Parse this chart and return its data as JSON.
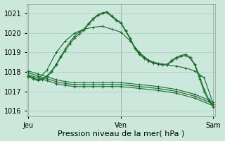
{
  "bg_color": "#cce8dc",
  "grid_color": "#aaccbb",
  "line_color": "#1a6e2e",
  "title": "Pression niveau de la mer( hPa )",
  "ylim": [
    1015.7,
    1021.5
  ],
  "yticks": [
    1016,
    1017,
    1018,
    1019,
    1020,
    1021
  ],
  "lines": [
    {
      "x": [
        0.0,
        0.05,
        0.1,
        0.15,
        0.2,
        0.25,
        0.3,
        0.35,
        0.4,
        0.45,
        0.5,
        0.55,
        0.6,
        0.65,
        0.7,
        0.75,
        0.8,
        0.85,
        0.9,
        0.95,
        1.0,
        1.05,
        1.1,
        1.15,
        1.2,
        1.25,
        1.3,
        1.35,
        1.4,
        1.45,
        1.5,
        1.55,
        1.6,
        1.65,
        1.7,
        1.75,
        1.8,
        1.85,
        1.9,
        1.95,
        2.0
      ],
      "y": [
        1017.8,
        1017.7,
        1017.6,
        1017.65,
        1017.8,
        1018.05,
        1018.4,
        1018.8,
        1019.2,
        1019.55,
        1019.85,
        1020.05,
        1020.2,
        1020.5,
        1020.75,
        1020.95,
        1021.05,
        1021.1,
        1020.9,
        1020.7,
        1020.55,
        1020.15,
        1019.75,
        1019.25,
        1018.95,
        1018.75,
        1018.6,
        1018.5,
        1018.45,
        1018.4,
        1018.4,
        1018.6,
        1018.75,
        1018.85,
        1018.9,
        1018.75,
        1018.4,
        1017.8,
        1017.1,
        1016.6,
        1016.25
      ]
    },
    {
      "x": [
        0.0,
        0.05,
        0.1,
        0.15,
        0.2,
        0.25,
        0.3,
        0.35,
        0.4,
        0.45,
        0.5,
        0.55,
        0.6,
        0.65,
        0.7,
        0.75,
        0.8,
        0.85,
        0.9,
        0.95,
        1.0,
        1.05,
        1.1,
        1.15,
        1.2,
        1.25,
        1.3,
        1.35,
        1.4,
        1.45,
        1.5,
        1.55,
        1.6,
        1.65,
        1.7,
        1.75,
        1.8,
        1.85,
        1.9,
        1.95,
        2.0
      ],
      "y": [
        1017.75,
        1017.65,
        1017.55,
        1017.6,
        1017.75,
        1018.0,
        1018.35,
        1018.75,
        1019.1,
        1019.45,
        1019.75,
        1019.95,
        1020.15,
        1020.45,
        1020.7,
        1020.9,
        1021.0,
        1021.05,
        1020.85,
        1020.65,
        1020.5,
        1020.1,
        1019.7,
        1019.2,
        1018.9,
        1018.7,
        1018.55,
        1018.45,
        1018.4,
        1018.35,
        1018.35,
        1018.55,
        1018.7,
        1018.8,
        1018.85,
        1018.7,
        1018.35,
        1017.65,
        1017.0,
        1016.5,
        1016.2
      ]
    },
    {
      "x": [
        0.0,
        0.1,
        0.2,
        0.3,
        0.4,
        0.5,
        0.6,
        0.7,
        0.8,
        0.9,
        1.0,
        1.1,
        1.2,
        1.3,
        1.4,
        1.5,
        1.6,
        1.7,
        1.8,
        1.9,
        2.0
      ],
      "y": [
        1017.8,
        1017.6,
        1018.1,
        1019.0,
        1019.6,
        1020.0,
        1020.2,
        1020.3,
        1020.35,
        1020.2,
        1020.05,
        1019.6,
        1019.0,
        1018.6,
        1018.4,
        1018.35,
        1018.3,
        1018.2,
        1018.05,
        1017.7,
        1016.35
      ]
    },
    {
      "x": [
        0.0,
        0.1,
        0.2,
        0.3,
        0.4,
        0.5,
        0.6,
        0.7,
        0.8,
        0.9,
        1.0,
        1.2,
        1.4,
        1.6,
        1.8,
        2.0
      ],
      "y": [
        1018.05,
        1017.9,
        1017.75,
        1017.6,
        1017.5,
        1017.45,
        1017.45,
        1017.45,
        1017.45,
        1017.45,
        1017.45,
        1017.35,
        1017.25,
        1017.1,
        1016.85,
        1016.45
      ]
    },
    {
      "x": [
        0.0,
        0.1,
        0.2,
        0.3,
        0.4,
        0.5,
        0.6,
        0.7,
        0.8,
        0.9,
        1.0,
        1.2,
        1.4,
        1.6,
        1.8,
        2.0
      ],
      "y": [
        1017.95,
        1017.8,
        1017.65,
        1017.5,
        1017.4,
        1017.35,
        1017.35,
        1017.35,
        1017.35,
        1017.35,
        1017.35,
        1017.25,
        1017.15,
        1017.0,
        1016.75,
        1016.35
      ]
    },
    {
      "x": [
        0.0,
        0.1,
        0.2,
        0.3,
        0.4,
        0.5,
        0.6,
        0.7,
        0.8,
        0.9,
        1.0,
        1.2,
        1.4,
        1.6,
        1.8,
        2.0
      ],
      "y": [
        1017.85,
        1017.7,
        1017.55,
        1017.4,
        1017.3,
        1017.25,
        1017.25,
        1017.25,
        1017.25,
        1017.25,
        1017.25,
        1017.15,
        1017.05,
        1016.9,
        1016.65,
        1016.25
      ]
    }
  ],
  "vlines_x": [
    0.0,
    1.0,
    2.0
  ],
  "vline_color": "#777777",
  "xtick_labels": [
    "Jeu",
    "Ven",
    "Sam"
  ],
  "xtick_positions": [
    0.0,
    1.0,
    2.0
  ],
  "tick_fontsize": 7,
  "xlabel_fontsize": 8,
  "marker_size": 2.5,
  "linewidth": 0.8
}
